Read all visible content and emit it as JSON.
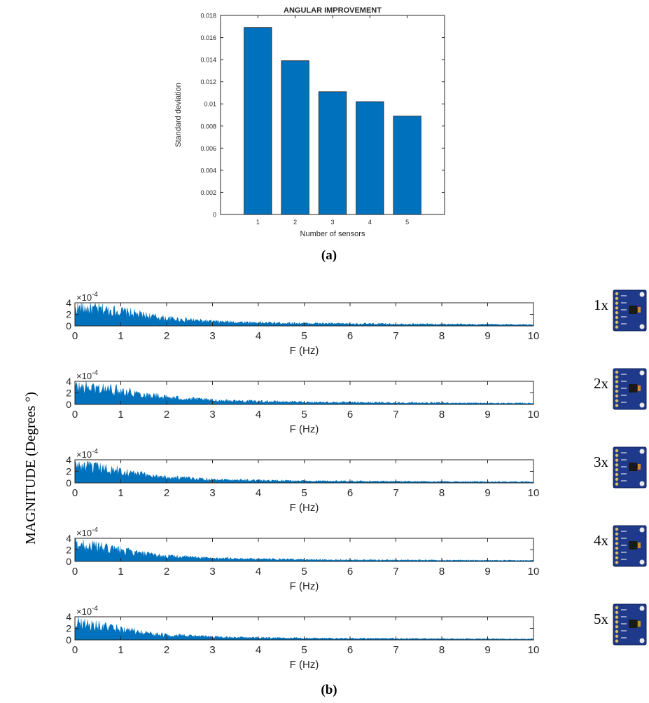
{
  "colors": {
    "bar_fill": "#0072BD",
    "bar_stroke": "#1a1a1a",
    "spectrum_fill": "#0072BD",
    "axis": "#262626",
    "sensor_board": "#1f3a8a"
  },
  "panel_a_label": "(a)",
  "panel_b_label": "(b)",
  "shared_ylabel": "MAGNITUDE (Degrees °)",
  "sensor_icon": "gy-521-sensor-board-icon",
  "chart_data": [
    {
      "type": "bar",
      "title": "ANGULAR IMPROVEMENT",
      "xlabel": "Number of sensors",
      "ylabel": "Standard deviation",
      "categories": [
        "1",
        "2",
        "3",
        "4",
        "5"
      ],
      "values": [
        0.0169,
        0.0139,
        0.0111,
        0.0102,
        0.0089
      ],
      "ylim": [
        0,
        0.018
      ],
      "yticks": [
        "0",
        "0.002",
        "0.004",
        "0.006",
        "0.008",
        "0.01",
        "0.012",
        "0.014",
        "0.016",
        "0.018"
      ],
      "grid": false
    },
    {
      "type": "area",
      "sensor_label": "1x",
      "xlabel": "F (Hz)",
      "exponent_label": "×10",
      "exponent_power": "-4",
      "xlim": [
        0,
        10
      ],
      "ylim": [
        0,
        0.0004
      ],
      "xticks": [
        "0",
        "1",
        "2",
        "3",
        "4",
        "5",
        "6",
        "7",
        "8",
        "9",
        "10"
      ],
      "yticks": [
        "0",
        "2",
        "4"
      ],
      "envelope": {
        "x": [
          0,
          0.5,
          1,
          1.5,
          2,
          3,
          4,
          5,
          6,
          7,
          8,
          9,
          10
        ],
        "y": [
          0.0004,
          0.00038,
          0.00033,
          0.00024,
          0.00017,
          0.0001,
          7.5e-05,
          6e-05,
          5e-05,
          4.5e-05,
          4e-05,
          3.5e-05,
          3e-05
        ]
      }
    },
    {
      "type": "area",
      "sensor_label": "2x",
      "xlabel": "F (Hz)",
      "exponent_label": "×10",
      "exponent_power": "-4",
      "xlim": [
        0,
        10
      ],
      "ylim": [
        0,
        0.0004
      ],
      "xticks": [
        "0",
        "1",
        "2",
        "3",
        "4",
        "5",
        "6",
        "7",
        "8",
        "9",
        "10"
      ],
      "yticks": [
        "0",
        "2",
        "4"
      ],
      "envelope": {
        "x": [
          0,
          0.5,
          1,
          1.5,
          2,
          3,
          4,
          5,
          6,
          7,
          8,
          9,
          10
        ],
        "y": [
          0.0004,
          0.00037,
          0.00032,
          0.00023,
          0.00016,
          9.5e-05,
          7e-05,
          5.5e-05,
          4.5e-05,
          4e-05,
          3.5e-05,
          3e-05,
          2.8e-05
        ]
      }
    },
    {
      "type": "area",
      "sensor_label": "3x",
      "xlabel": "F (Hz)",
      "exponent_label": "×10",
      "exponent_power": "-4",
      "xlim": [
        0,
        10
      ],
      "ylim": [
        0,
        0.0004
      ],
      "xticks": [
        "0",
        "1",
        "2",
        "3",
        "4",
        "5",
        "6",
        "7",
        "8",
        "9",
        "10"
      ],
      "yticks": [
        "0",
        "2",
        "4"
      ],
      "envelope": {
        "x": [
          0,
          0.5,
          1,
          1.5,
          2,
          3,
          4,
          5,
          6,
          7,
          8,
          9,
          10
        ],
        "y": [
          0.0004,
          0.00034,
          0.00027,
          0.00019,
          0.00013,
          8e-05,
          6e-05,
          4.5e-05,
          4e-05,
          3.5e-05,
          3e-05,
          2.7e-05,
          2.5e-05
        ]
      }
    },
    {
      "type": "area",
      "sensor_label": "4x",
      "xlabel": "F (Hz)",
      "exponent_label": "×10",
      "exponent_power": "-4",
      "xlim": [
        0,
        10
      ],
      "ylim": [
        0,
        0.0004
      ],
      "xticks": [
        "0",
        "1",
        "2",
        "3",
        "4",
        "5",
        "6",
        "7",
        "8",
        "9",
        "10"
      ],
      "yticks": [
        "0",
        "2",
        "4"
      ],
      "envelope": {
        "x": [
          0,
          0.5,
          1,
          1.5,
          2,
          3,
          4,
          5,
          6,
          7,
          8,
          9,
          10
        ],
        "y": [
          0.0004,
          0.00033,
          0.00025,
          0.00017,
          0.00012,
          7.5e-05,
          5.5e-05,
          4.2e-05,
          3.6e-05,
          3.2e-05,
          2.8e-05,
          2.5e-05,
          2.2e-05
        ]
      }
    },
    {
      "type": "area",
      "sensor_label": "5x",
      "xlabel": "F (Hz)",
      "exponent_label": "×10",
      "exponent_power": "-4",
      "xlim": [
        0,
        10
      ],
      "ylim": [
        0,
        0.0004
      ],
      "xticks": [
        "0",
        "1",
        "2",
        "3",
        "4",
        "5",
        "6",
        "7",
        "8",
        "9",
        "10"
      ],
      "yticks": [
        "0",
        "2",
        "4"
      ],
      "envelope": {
        "x": [
          0,
          0.5,
          1,
          1.5,
          2,
          3,
          4,
          5,
          6,
          7,
          8,
          9,
          10
        ],
        "y": [
          0.0004,
          0.00032,
          0.00024,
          0.00016,
          0.00011,
          7e-05,
          5e-05,
          4e-05,
          3.4e-05,
          3e-05,
          2.6e-05,
          2.3e-05,
          2e-05
        ]
      }
    }
  ]
}
